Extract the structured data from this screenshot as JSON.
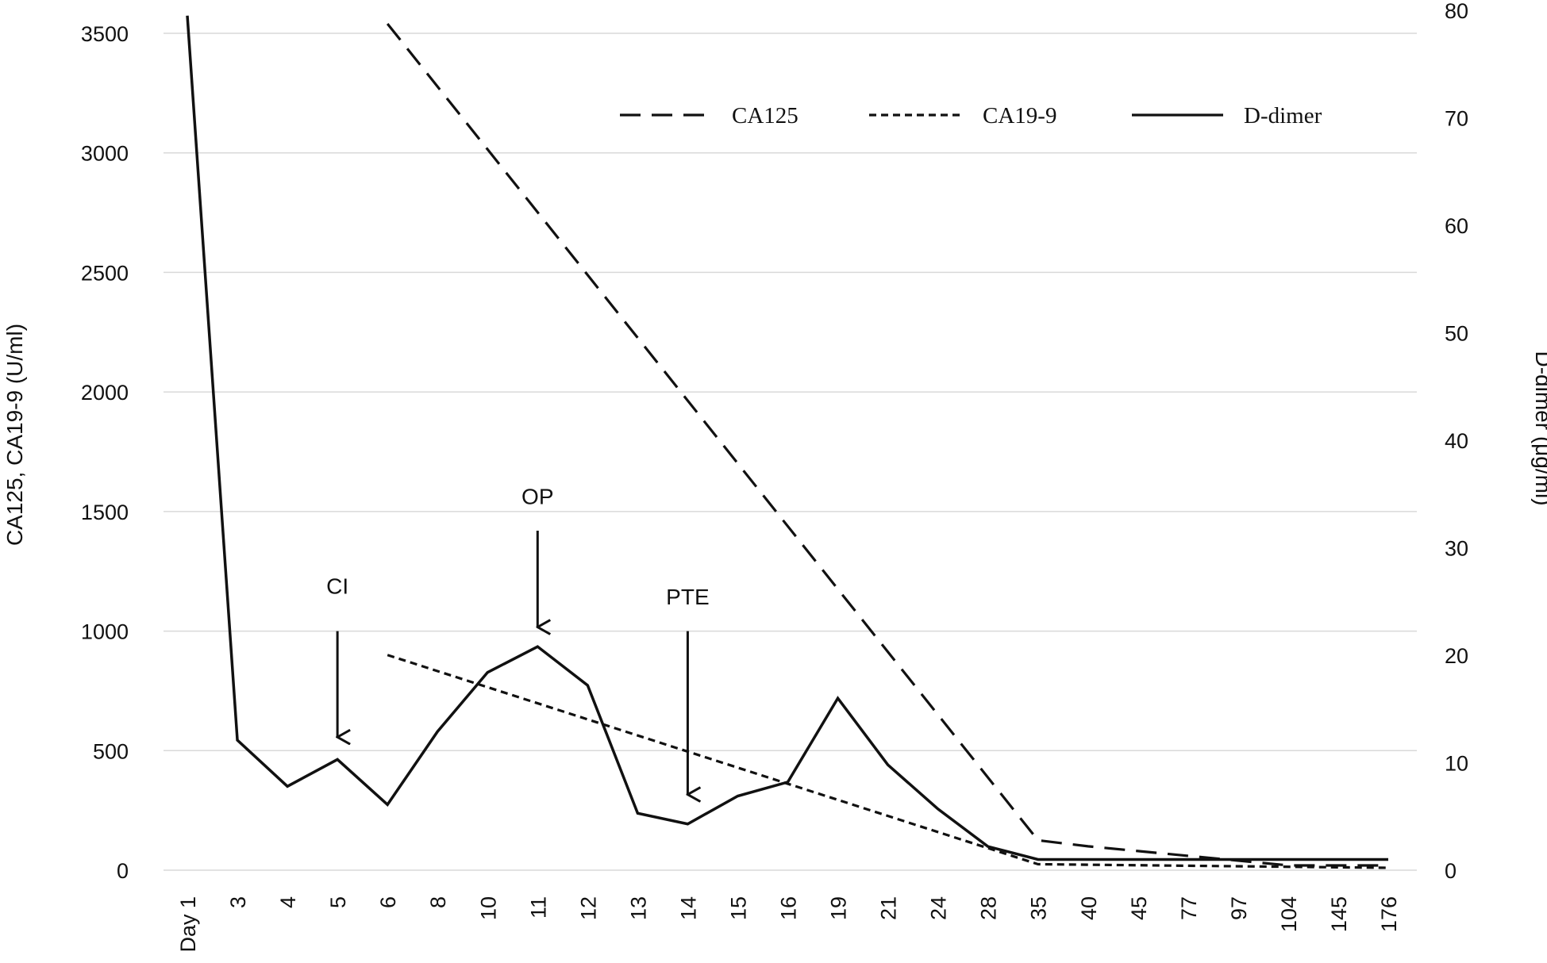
{
  "chart_data": {
    "type": "line",
    "categories": [
      "Day 1",
      "3",
      "4",
      "5",
      "6",
      "8",
      "10",
      "11",
      "12",
      "13",
      "14",
      "15",
      "16",
      "19",
      "21",
      "24",
      "28",
      "35",
      "40",
      "45",
      "77",
      "97",
      "104",
      "145",
      "176"
    ],
    "series": [
      {
        "name": "CA125",
        "axis": "left",
        "style": "long-dash",
        "values": [
          null,
          null,
          null,
          null,
          3540,
          null,
          null,
          null,
          null,
          null,
          null,
          null,
          null,
          null,
          null,
          null,
          null,
          125,
          100,
          80,
          60,
          null,
          20,
          null,
          20
        ]
      },
      {
        "name": "CA19-9",
        "axis": "left",
        "style": "short-dash",
        "values": [
          null,
          null,
          null,
          null,
          900,
          null,
          null,
          null,
          null,
          null,
          null,
          null,
          null,
          null,
          null,
          null,
          null,
          25,
          null,
          null,
          null,
          null,
          null,
          null,
          10
        ]
      },
      {
        "name": "D-dimer",
        "axis": "right",
        "style": "solid",
        "values": [
          79.5,
          12.1,
          7.8,
          10.3,
          6.1,
          12.9,
          18.4,
          20.8,
          17.2,
          5.3,
          4.3,
          6.9,
          8.2,
          16.0,
          9.8,
          5.7,
          2.2,
          1.0,
          1.0,
          1.0,
          1.0,
          1.0,
          1.0,
          1.0,
          1.0
        ]
      }
    ],
    "ylabel_left": "CA125,  CA19-9 (U/ml)",
    "ylabel_right": "D-dimer (μg/ml)",
    "ylim_left": [
      0,
      3500
    ],
    "yticks_left": [
      "0",
      "500",
      "1000",
      "1500",
      "2000",
      "2500",
      "3000",
      "3500"
    ],
    "ylim_right": [
      0,
      80
    ],
    "yticks_right": [
      "0",
      "10",
      "20",
      "30",
      "40",
      "50",
      "60",
      "70",
      "80"
    ],
    "grid": true,
    "legend_placement": "top-right",
    "legend": [
      {
        "label": "CA125",
        "style": "long-dash"
      },
      {
        "label": "CA19-9",
        "style": "short-dash"
      },
      {
        "label": "D-dimer",
        "style": "solid"
      }
    ],
    "annotations": [
      {
        "label": "CI",
        "category": "5",
        "arrow_top_value": 1000,
        "arrow_tip_value": 550,
        "label_value": 1190
      },
      {
        "label": "OP",
        "category": "11",
        "arrow_top_value": 1420,
        "arrow_tip_value": 1010,
        "label_value": 1565
      },
      {
        "label": "PTE",
        "category": "14",
        "arrow_top_value": 1000,
        "arrow_tip_value": 310,
        "label_value": 1145
      }
    ]
  }
}
